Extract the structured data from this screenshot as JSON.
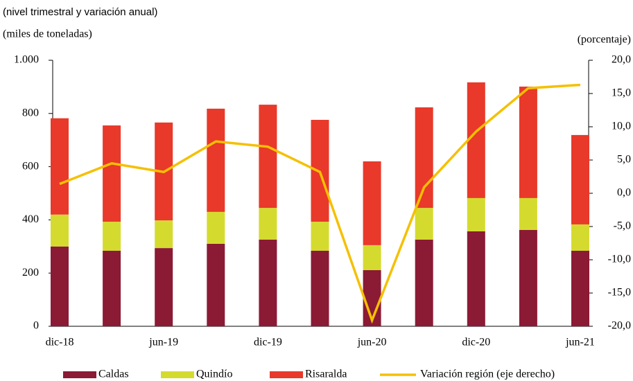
{
  "chart_data": {
    "type": "bar",
    "stacked": true,
    "title": "(nivel trimestral y variación anual)",
    "ylabel": "(miles de toneladas)",
    "y2label": "(porcentaje)",
    "categories": [
      "dic-18",
      null,
      "jun-19",
      null,
      "dic-19",
      null,
      "jun-20",
      null,
      "dic-20",
      null,
      "jun-21"
    ],
    "series": [
      {
        "name": "Caldas",
        "color": "#8b1a35",
        "values": [
          300,
          284,
          294,
          310,
          326,
          284,
          211,
          326,
          357,
          362,
          284
        ]
      },
      {
        "name": "Quindío",
        "color": "#d4db2e",
        "values": [
          120,
          109,
          104,
          120,
          119,
          109,
          94,
          119,
          125,
          120,
          99
        ]
      },
      {
        "name": "Risaralda",
        "color": "#e8392a",
        "values": [
          362,
          362,
          368,
          388,
          388,
          383,
          315,
          378,
          435,
          419,
          336
        ]
      },
      {
        "name": "Variación región (eje derecho)",
        "color": "#f5c000",
        "type": "line",
        "axis": "y2",
        "values": [
          1.4,
          4.5,
          3.2,
          7.8,
          7.0,
          3.2,
          -19.1,
          0.9,
          9.3,
          15.8,
          16.3
        ]
      }
    ],
    "ylim": [
      0,
      1000
    ],
    "yticks": [
      0,
      200,
      400,
      600,
      800,
      {
        "value": 1000,
        "label": "1.000"
      }
    ],
    "y2lim": [
      -20,
      20
    ],
    "y2ticks": [
      {
        "value": -20,
        "label": "-20,0"
      },
      {
        "value": -15,
        "label": "-15,0"
      },
      {
        "value": -10,
        "label": "-10,0"
      },
      {
        "value": -5,
        "label": "-5,0"
      },
      {
        "value": 0,
        "label": "0,0"
      },
      {
        "value": 5,
        "label": "5,0"
      },
      {
        "value": 10,
        "label": "10,0"
      },
      {
        "value": 15,
        "label": "15,0"
      },
      {
        "value": 20,
        "label": "20,0"
      }
    ],
    "legend": "bottom"
  }
}
